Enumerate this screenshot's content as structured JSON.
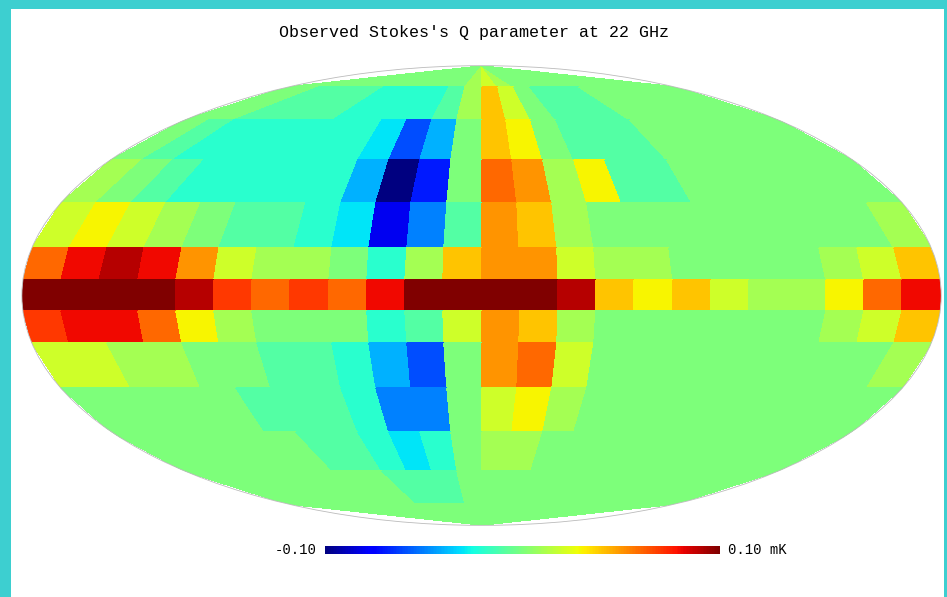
{
  "chart_data": {
    "type": "heatmap",
    "title": "Observed Stokes's Q parameter at 22 GHz",
    "tick_labels": false,
    "x_edges": [
      -180,
      -165,
      -150,
      -135,
      -120,
      -105,
      -90,
      -75,
      -60,
      -45,
      -30,
      -15,
      0,
      15,
      30,
      45,
      60,
      75,
      90,
      105,
      120,
      135,
      150,
      165,
      180
    ],
    "y_edges": [
      90,
      75,
      60,
      45,
      30,
      15,
      5,
      -5,
      -15,
      -30,
      -45,
      -60,
      -75,
      -90
    ],
    "cells": [
      [
        0,
        0,
        0,
        0,
        0,
        0,
        0,
        0,
        0,
        0,
        0,
        0.01,
        0.02,
        0.01,
        0,
        0,
        0,
        0,
        0,
        0,
        0,
        0,
        0,
        0
      ],
      [
        0,
        0,
        -0.01,
        -0.01,
        -0.01,
        -0.01,
        -0.02,
        -0.02,
        -0.02,
        -0.02,
        -0.01,
        0.01,
        0.04,
        0.02,
        0,
        -0.01,
        -0.01,
        -0.01,
        0,
        0,
        0,
        0,
        0,
        0
      ],
      [
        0,
        -0.01,
        -0.02,
        -0.02,
        -0.02,
        -0.02,
        -0.02,
        -0.02,
        -0.03,
        -0.06,
        -0.04,
        0.0,
        0.04,
        0.03,
        0.0,
        -0.01,
        -0.01,
        -0.01,
        0,
        0,
        0,
        0,
        0,
        0
      ],
      [
        0.01,
        0,
        -0.01,
        -0.02,
        -0.02,
        -0.02,
        -0.02,
        -0.02,
        -0.04,
        -0.1,
        -0.07,
        0.0,
        0.06,
        0.05,
        0.01,
        0.03,
        -0.01,
        -0.01,
        0,
        0,
        0,
        0,
        0,
        0
      ],
      [
        0.02,
        0.03,
        0.02,
        0.01,
        0,
        -0.01,
        -0.01,
        -0.02,
        -0.03,
        -0.08,
        -0.05,
        -0.01,
        0.05,
        0.04,
        0.01,
        0.0,
        0.0,
        0.0,
        0,
        0,
        0,
        0,
        0,
        0.01
      ],
      [
        0.06,
        0.08,
        0.09,
        0.08,
        0.05,
        0.02,
        0.01,
        0.01,
        0.0,
        -0.02,
        0.01,
        0.04,
        0.05,
        0.05,
        0.02,
        0.01,
        0.01,
        0.0,
        0,
        0,
        0,
        0.01,
        0.02,
        0.04
      ],
      [
        0.1,
        0.12,
        0.13,
        0.12,
        0.09,
        0.07,
        0.06,
        0.07,
        0.06,
        0.08,
        0.1,
        0.12,
        0.13,
        0.12,
        0.09,
        0.04,
        0.03,
        0.04,
        0.02,
        0.01,
        0.01,
        0.03,
        0.06,
        0.08
      ],
      [
        0.07,
        0.08,
        0.08,
        0.06,
        0.03,
        0.01,
        0.0,
        0.0,
        0.0,
        -0.02,
        -0.01,
        0.02,
        0.05,
        0.04,
        0.01,
        0.0,
        0.0,
        0.0,
        0,
        0,
        0,
        0.01,
        0.02,
        0.04
      ],
      [
        0.02,
        0.02,
        0.01,
        0.01,
        0,
        0,
        -0.01,
        -0.01,
        -0.02,
        -0.04,
        -0.06,
        0.0,
        0.05,
        0.06,
        0.02,
        0.0,
        0,
        0,
        0,
        0,
        0,
        0,
        0,
        0.01
      ],
      [
        0,
        0,
        0,
        0,
        0,
        -0.01,
        -0.01,
        -0.01,
        -0.02,
        -0.05,
        -0.05,
        0.0,
        0.02,
        0.03,
        0.01,
        0,
        0,
        0,
        0,
        0,
        0,
        0,
        0,
        0
      ],
      [
        0,
        0,
        0,
        0,
        0,
        0,
        -0.01,
        -0.01,
        -0.02,
        -0.03,
        -0.02,
        0,
        0.01,
        0.01,
        0,
        0,
        0,
        0,
        0,
        0,
        0,
        0,
        0,
        0
      ],
      [
        0,
        0,
        0,
        0,
        0,
        0,
        0,
        0,
        -0.01,
        -0.01,
        -0.01,
        0,
        0,
        0,
        0,
        0,
        0,
        0,
        0,
        0,
        0,
        0,
        0,
        0
      ],
      [
        0,
        0,
        0,
        0,
        0,
        0,
        0,
        0,
        0,
        0,
        0,
        0,
        0,
        0,
        0,
        0,
        0,
        0,
        0,
        0,
        0,
        0,
        0,
        0
      ]
    ],
    "colorbar_range": [
      -0.1,
      0.1
    ],
    "colorbar_ticks": [
      {
        "value": -0.1,
        "label": "-0.10"
      },
      {
        "value": 0.1,
        "label": "0.10 mK"
      }
    ]
  }
}
